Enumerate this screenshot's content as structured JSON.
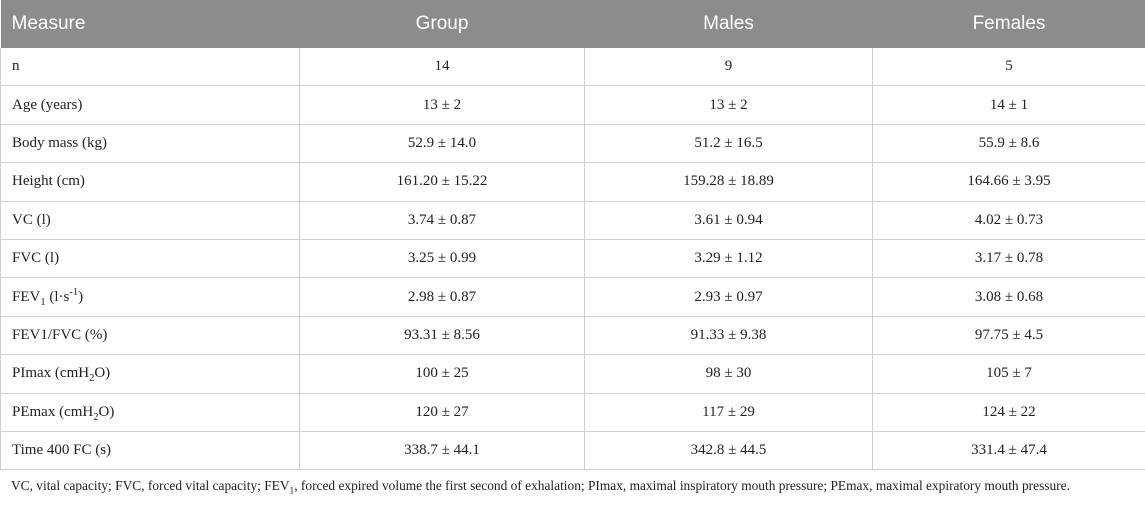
{
  "table": {
    "headers": [
      "Measure",
      "Group",
      "Males",
      "Females"
    ],
    "rows": [
      {
        "measure": "n",
        "group": "14",
        "males": "9",
        "females": "5"
      },
      {
        "measure": "Age (years)",
        "group": "13 ± 2",
        "males": "13 ± 2",
        "females": "14 ± 1"
      },
      {
        "measure": "Body mass (kg)",
        "group": "52.9 ± 14.0",
        "males": "51.2 ± 16.5",
        "females": "55.9 ± 8.6"
      },
      {
        "measure": "Height (cm)",
        "group": "161.20 ± 15.22",
        "males": "159.28 ± 18.89",
        "females": "164.66 ± 3.95"
      },
      {
        "measure": "VC (l)",
        "group": "3.74 ± 0.87",
        "males": "3.61 ± 0.94",
        "females": "4.02 ± 0.73"
      },
      {
        "measure": "FVC (l)",
        "group": "3.25 ± 0.99",
        "males": "3.29 ± 1.12",
        "females": "3.17 ± 0.78"
      },
      {
        "measure_parts": [
          "FEV",
          "1",
          " (l",
          "·",
          "s",
          "-1",
          ")"
        ],
        "group": "2.98 ± 0.87",
        "males": "2.93 ± 0.97",
        "females": "3.08 ± 0.68"
      },
      {
        "measure": "FEV1/FVC (%)",
        "group": "93.31 ± 8.56",
        "males": "91.33 ± 9.38",
        "females": "97.75 ± 4.5"
      },
      {
        "measure_parts": [
          "PImax (cmH",
          "2",
          "O)"
        ],
        "group": "100 ± 25",
        "males": "98 ± 30",
        "females": "105 ± 7"
      },
      {
        "measure_parts": [
          "PEmax (cmH",
          "2",
          "O)"
        ],
        "group": "120 ± 27",
        "males": "117 ± 29",
        "females": "124 ± 22"
      },
      {
        "measure": "Time 400 FC (s)",
        "group": "338.7 ± 44.1",
        "males": "342.8 ± 44.5",
        "females": "331.4 ± 47.4"
      }
    ]
  },
  "footnote": {
    "parts": [
      "VC, vital capacity; FVC, forced vital capacity; FEV",
      "1",
      ", forced expired volume the first second of exhalation; PImax, maximal inspiratory mouth pressure; PEmax, maximal expiratory mouth pressure."
    ]
  },
  "colors": {
    "header_bg": "#8c8c8c",
    "header_text": "#ffffff",
    "grid": "#cfcfcf"
  }
}
